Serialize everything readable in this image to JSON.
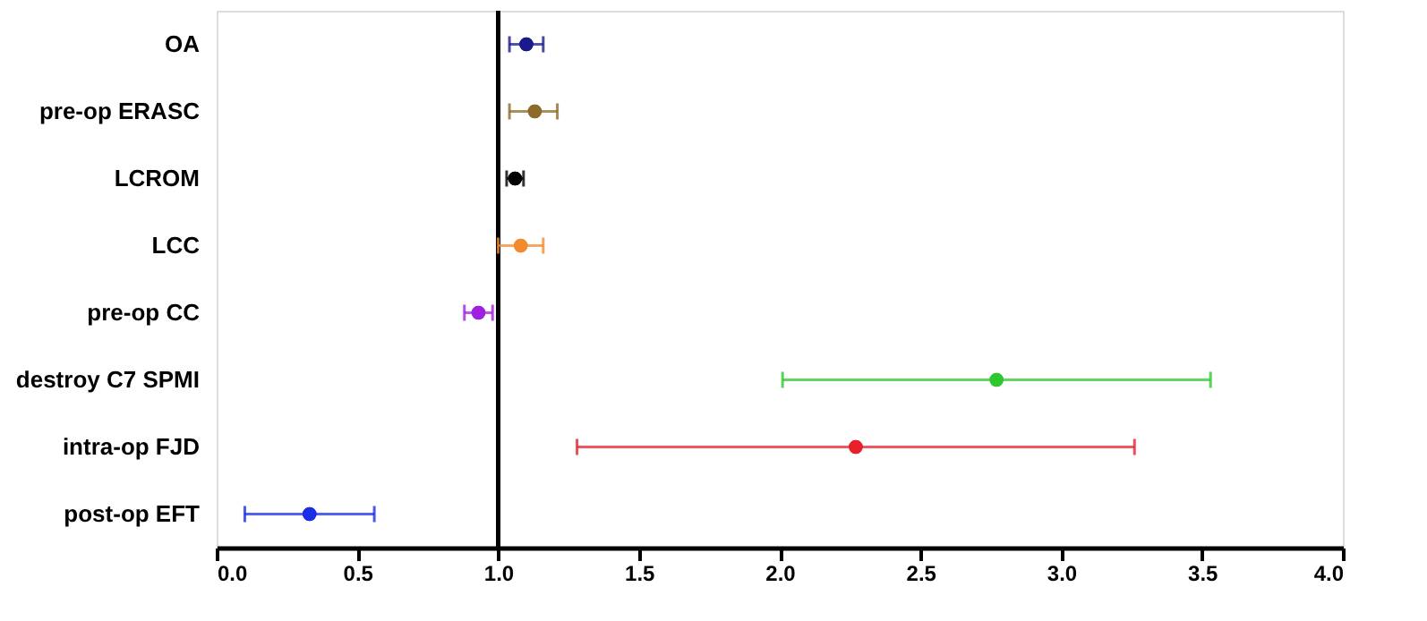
{
  "chart_data": {
    "type": "scatter",
    "orientation": "horizontal",
    "categories": [
      "OA",
      "pre-op ERASC",
      "LCROM",
      "LCC",
      "pre-op CC",
      "destroy C7 SPMI",
      "intra-op FJD",
      "post-op EFT"
    ],
    "values": [
      1.1,
      1.13,
      1.06,
      1.08,
      0.93,
      2.77,
      2.27,
      0.33
    ],
    "errors": [
      [
        1.04,
        1.16
      ],
      [
        1.04,
        1.21
      ],
      [
        1.03,
        1.09
      ],
      [
        1.0,
        1.16
      ],
      [
        0.88,
        0.98
      ],
      [
        2.01,
        3.53
      ],
      [
        1.28,
        3.26
      ],
      [
        0.1,
        0.56
      ]
    ],
    "colors": [
      "#1a1a8c",
      "#8c6a2a",
      "#000000",
      "#f28a2e",
      "#a020e0",
      "#2ec82e",
      "#e8202a",
      "#1a2ee6"
    ],
    "xlim": [
      0.0,
      4.0
    ],
    "xticks": [
      {
        "value": 0,
        "label": "0.0"
      },
      {
        "value": 0.5,
        "label": "0.5"
      },
      {
        "value": 1,
        "label": "1.0"
      },
      {
        "value": 1.5,
        "label": "1.5"
      },
      {
        "value": 2,
        "label": "2.0"
      },
      {
        "value": 2.5,
        "label": "2.5"
      },
      {
        "value": 3,
        "label": "3.0"
      },
      {
        "value": 3.5,
        "label": "3.5"
      },
      {
        "value": 4,
        "label": "4.0"
      }
    ],
    "ref_lines": [
      {
        "axis": "x",
        "value": 1,
        "color": "#000000"
      }
    ],
    "marker": "circle",
    "grid": false,
    "legend": false
  }
}
